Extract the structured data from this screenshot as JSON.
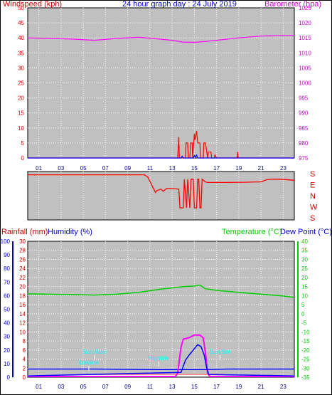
{
  "chart_data": [
    {
      "id": "wind_baro",
      "type": "line",
      "title": "24 hour graph day : 24 July 2019",
      "ylabel_left": "Windspeed (kph)",
      "ylabel_right": "Barometer (hpa)",
      "ylim_left": [
        0,
        50
      ],
      "ylim_right": [
        975,
        1025
      ],
      "yticks_left": [
        "0",
        "5",
        "10",
        "15",
        "20",
        "25",
        "30",
        "35",
        "40",
        "45",
        "50"
      ],
      "yticks_right": [
        "975",
        "980",
        "985",
        "990",
        "995",
        "1000",
        "1005",
        "1010",
        "1015",
        "1020",
        "1025"
      ],
      "xticks": [
        "01",
        "03",
        "05",
        "07",
        "09",
        "11",
        "13",
        "15",
        "17",
        "19",
        "21",
        "23"
      ],
      "grid": true,
      "colors": {
        "bg": "#c0c0c0",
        "wind": "#ff0000",
        "gust": "#0000ff",
        "baro": "#ff00ff",
        "left_axis": "#cc0000",
        "right_axis": "#cc00cc",
        "title": "#0000cc"
      },
      "series": [
        {
          "role": "barometer",
          "x": [
            0,
            2,
            4,
            6,
            8,
            10,
            11,
            13,
            14,
            15,
            16,
            17,
            19,
            21,
            23,
            24
          ],
          "values": [
            1015,
            1014.8,
            1014.6,
            1014.2,
            1014.8,
            1015.2,
            1014.9,
            1014.2,
            1013.6,
            1013.5,
            1013.8,
            1014.2,
            1015,
            1015.6,
            1015.8,
            1015.8
          ]
        },
        {
          "role": "windspeed",
          "x": [
            0,
            13.5,
            13.6,
            13.65,
            13.8,
            14.2,
            14.25,
            14.4,
            14.45,
            14.6,
            14.65,
            14.8,
            14.85,
            15.0,
            15.05,
            15.2,
            15.3,
            15.5,
            15.55,
            15.8,
            15.85,
            16.0,
            16.2,
            16.25,
            16.5,
            16.55,
            16.8,
            16.85,
            17.0,
            18.85,
            18.9,
            18.95,
            24
          ],
          "values": [
            0,
            0,
            7,
            0,
            0,
            0,
            5,
            5,
            0,
            0,
            5,
            5,
            0,
            8,
            6,
            9,
            5,
            5,
            0,
            0,
            5,
            5,
            0,
            2,
            2,
            0,
            0,
            1,
            0,
            0,
            2,
            0,
            0
          ]
        },
        {
          "role": "gust",
          "x": [
            0,
            13.8,
            13.9,
            14.0,
            14.2,
            14.9,
            15.0,
            15.1,
            15.2,
            15.3,
            24
          ],
          "values": [
            0,
            0,
            0.6,
            0,
            0,
            0,
            0.8,
            0.3,
            1,
            0,
            0
          ]
        }
      ]
    },
    {
      "id": "wind_dir",
      "type": "line",
      "ylabels": [
        "S",
        "E",
        "N",
        "W",
        "S"
      ],
      "xticks": [
        "01",
        "03",
        "05",
        "07",
        "09",
        "11",
        "13",
        "15",
        "17",
        "19",
        "21",
        "23"
      ],
      "grid": true,
      "colors": {
        "bg": "#c0c0c0",
        "line": "#ff0000",
        "labels": "#cc0000"
      },
      "x": [
        0,
        0.1,
        10.5,
        10.8,
        11.5,
        11.6,
        12,
        12.2,
        12.5,
        13,
        13.6,
        13.7,
        14,
        14.1,
        14.3,
        14.4,
        14.6,
        14.7,
        14.9,
        15.0,
        15.2,
        15.3,
        15.4,
        15.5,
        15.6,
        15.7,
        16.0,
        16.2,
        18,
        19.5,
        20.5,
        21,
        21.5,
        22,
        22.8,
        24
      ],
      "values": [
        0.1,
        0.1,
        0.1,
        0.3,
        1.7,
        1.55,
        1.4,
        1.6,
        1.35,
        1.35,
        1.4,
        3.1,
        3.1,
        0.5,
        3.1,
        0.5,
        3.1,
        0.5,
        0.5,
        3.1,
        3.1,
        0.5,
        0.5,
        3.1,
        3.1,
        0.5,
        0.75,
        0.8,
        0.8,
        0.78,
        0.75,
        0.75,
        0.55,
        0.5,
        0.5,
        0.6
      ]
    },
    {
      "id": "rain_temp",
      "type": "line",
      "ylabel_rainfall": "Rainfall (mm)",
      "ylabel_humidity": "Humidity (%)",
      "ylabel_temperature": "Temperature (°C)",
      "ylabel_dewpoint": "Dew Point (°C)",
      "ylim_humidity": [
        0,
        100
      ],
      "ylim_rainfall": [
        0,
        30
      ],
      "ylim_temp": [
        -35,
        40
      ],
      "yticks_humidity": [
        "0",
        "10",
        "20",
        "30",
        "40",
        "50",
        "60",
        "70",
        "80",
        "90",
        "100"
      ],
      "yticks_rainfall": [
        "0",
        "2",
        "4",
        "6",
        "8",
        "10",
        "12",
        "14",
        "16",
        "18",
        "20",
        "22",
        "24",
        "26",
        "28",
        "30"
      ],
      "yticks_temp": [
        "-35",
        "-30",
        "-25",
        "-20",
        "-15",
        "-10",
        "-5",
        "0",
        "5",
        "10",
        "15",
        "20",
        "25",
        "30",
        "35",
        "40"
      ],
      "xticks": [
        "01",
        "03",
        "05",
        "07",
        "09",
        "11",
        "13",
        "15",
        "17",
        "19",
        "21",
        "23"
      ],
      "grid": true,
      "colors": {
        "bg": "#c0c0c0",
        "temp": "#00cc00",
        "dew": "#0000ff",
        "humidity": "#0000ff",
        "solar": "#ff00ff",
        "sun": "#ffffff",
        "rain": "#ff0000",
        "annot": "#00ffff",
        "rain_axis": "#cc0000",
        "humidity_axis": "#0000cc",
        "temp_axis": "#00cc00"
      },
      "series": [
        {
          "role": "temperature",
          "x": [
            0,
            2,
            4,
            6,
            8,
            10,
            12,
            14,
            15,
            15.5,
            16,
            17,
            19,
            21,
            23,
            24
          ],
          "values": [
            11,
            10.8,
            10.6,
            10.3,
            10.8,
            11.8,
            13.6,
            15,
            15.3,
            15.8,
            13.8,
            12.9,
            11.8,
            10.8,
            9.8,
            9
          ]
        },
        {
          "role": "dew_point",
          "x": [
            0,
            6,
            12,
            16,
            18,
            24
          ],
          "values": [
            -30.5,
            -30.5,
            -30.8,
            -30.8,
            -30.5,
            -30.5
          ]
        },
        {
          "role": "humidity_solar",
          "x": [
            0,
            13.3,
            13.5,
            13.8,
            14.0,
            14.5,
            15.0,
            15.5,
            15.8,
            16.0,
            16.2,
            16.4,
            24
          ],
          "values": [
            0.5,
            0.5,
            3,
            22,
            28,
            29,
            31,
            31,
            29,
            18,
            3,
            0.5,
            0.5
          ]
        },
        {
          "role": "humidity_blue",
          "x": [
            0,
            13.8,
            14.2,
            14.5,
            15.0,
            15.3,
            15.6,
            15.9,
            16.1,
            16.3,
            24
          ],
          "values": [
            1,
            3.5,
            12.5,
            16,
            21,
            24,
            22.5,
            16,
            7,
            2,
            1
          ]
        }
      ],
      "annotations": [
        {
          "label": "Sun Rise",
          "x": 6.0
        },
        {
          "label": "Lowtide",
          "x": 5.5
        },
        {
          "label": "Hightide",
          "x": 11.8
        },
        {
          "label": "Sun Set",
          "x": 17.3
        }
      ]
    }
  ]
}
